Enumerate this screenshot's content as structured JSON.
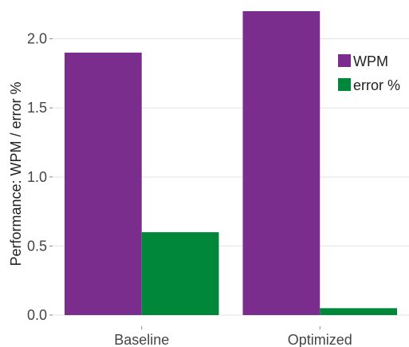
{
  "chart_data": {
    "type": "bar",
    "title": "",
    "xlabel": "",
    "ylabel": "Performance: WPM / error %",
    "categories": [
      "Baseline",
      "Optimized"
    ],
    "series": [
      {
        "name": "WPM",
        "color": "#7b2d8e",
        "values": [
          1.9,
          2.2
        ]
      },
      {
        "name": "error %",
        "color": "#00873a",
        "values": [
          0.6,
          0.05
        ]
      }
    ],
    "ylim": [
      0,
      2.2
    ],
    "yticks": [
      0.0,
      0.5,
      1.0,
      1.5,
      2.0
    ],
    "ytick_labels": [
      "0.0",
      "0.5",
      "1.0",
      "1.5",
      "2.0"
    ],
    "grid": true,
    "legend_position": "top-right"
  }
}
